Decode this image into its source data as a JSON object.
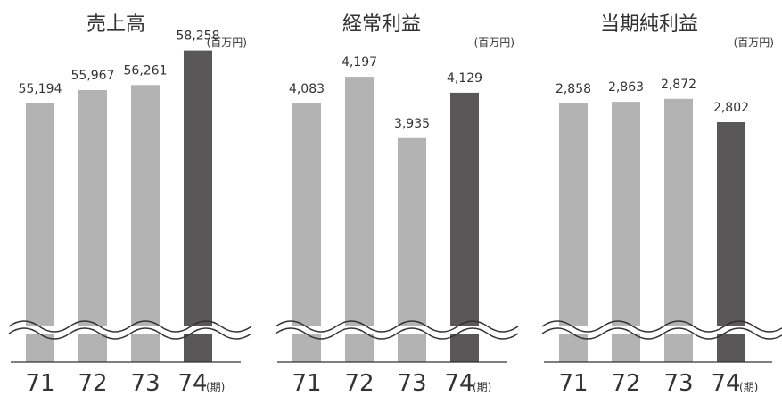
{
  "period_suffix": "(期)",
  "colors": {
    "past_bar": "#b3b3b3",
    "current_bar": "#595757",
    "text": "#333333",
    "axis": "#333333"
  },
  "chart_data": [
    {
      "type": "bar",
      "title": "売上高",
      "unit": "(百万円)",
      "categories": [
        "71",
        "72",
        "73",
        "74"
      ],
      "values": [
        55194,
        55967,
        56261,
        58258
      ],
      "value_labels": [
        "55,194",
        "55,967",
        "56,261",
        "58,258"
      ],
      "axis_break": true,
      "highlight_last": true
    },
    {
      "type": "bar",
      "title": "経常利益",
      "unit": "(百万円)",
      "categories": [
        "71",
        "72",
        "73",
        "74"
      ],
      "values": [
        4083,
        4197,
        3935,
        4129
      ],
      "value_labels": [
        "4,083",
        "4,197",
        "3,935",
        "4,129"
      ],
      "axis_break": true,
      "highlight_last": true
    },
    {
      "type": "bar",
      "title": "当期純利益",
      "unit": "(百万円)",
      "categories": [
        "71",
        "72",
        "73",
        "74"
      ],
      "values": [
        2858,
        2863,
        2872,
        2802
      ],
      "value_labels": [
        "2,858",
        "2,863",
        "2,872",
        "2,802"
      ],
      "axis_break": true,
      "highlight_last": true
    }
  ]
}
